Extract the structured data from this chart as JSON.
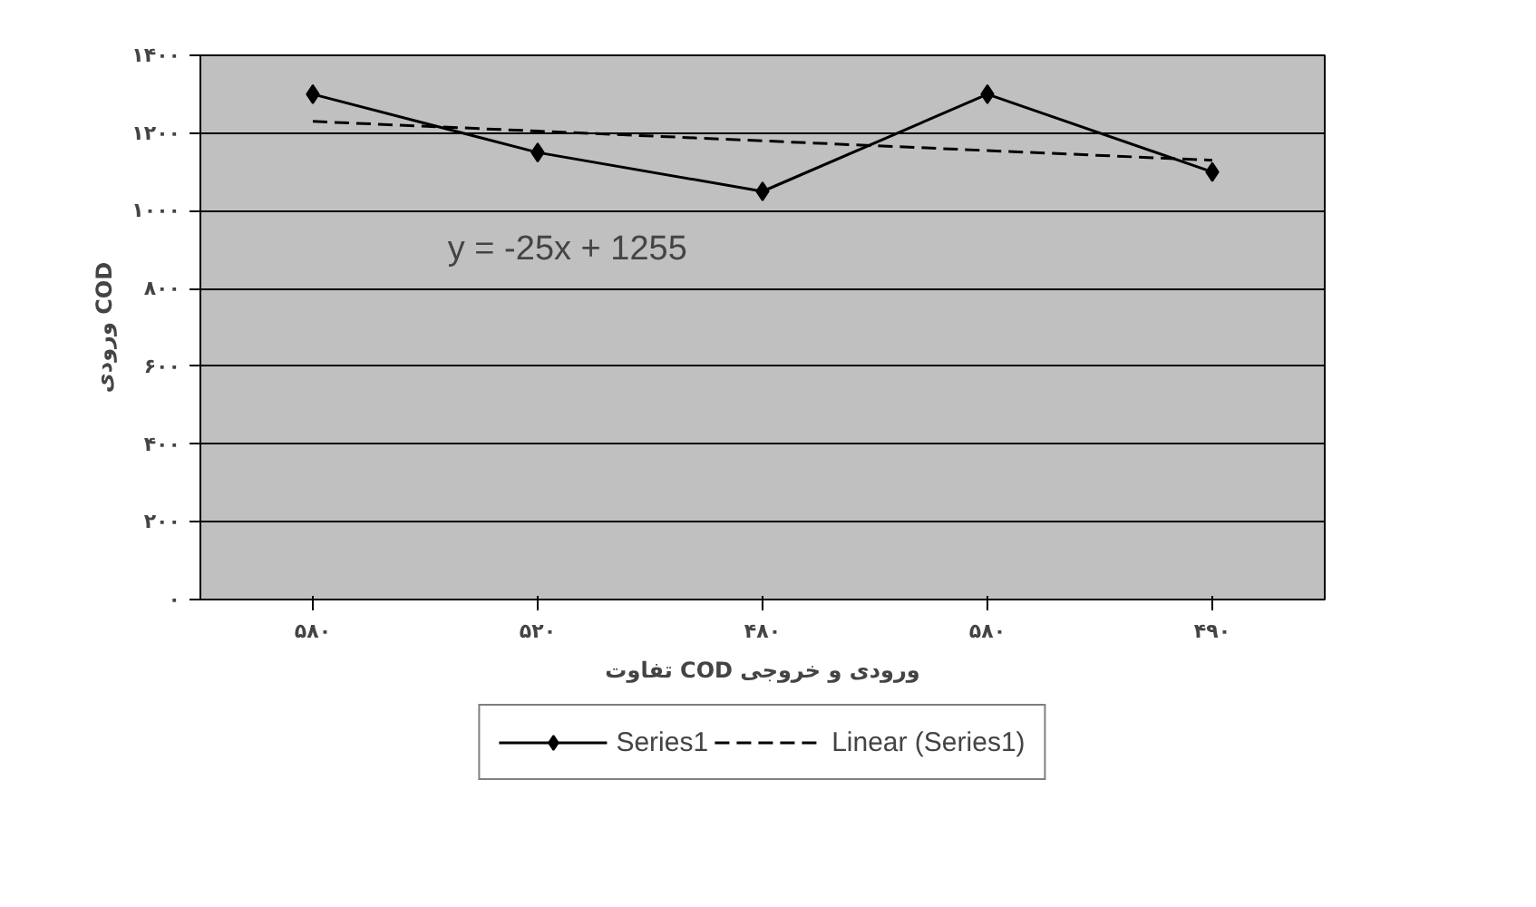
{
  "chart_data": {
    "type": "line",
    "xlabel": "تفاوت COD ورودی و خروجی",
    "ylabel": "ورودی COD",
    "categories": [
      "۵۸۰",
      "۵۲۰",
      "۴۸۰",
      "۵۸۰",
      "۴۹۰"
    ],
    "series": [
      {
        "name": "Series1",
        "color": "#000000",
        "values": [
          1300,
          1150,
          1050,
          1300,
          1100
        ],
        "marker": "diamond",
        "line_style": "solid"
      },
      {
        "name": "Linear (Series1)",
        "color": "#000000",
        "values": [
          1230,
          1205,
          1180,
          1155,
          1130
        ],
        "marker": "none",
        "line_style": "dashed"
      }
    ],
    "ylim": [
      0,
      1400
    ],
    "yticks": [
      {
        "value": 0,
        "label": "۰"
      },
      {
        "value": 200,
        "label": "۲۰۰"
      },
      {
        "value": 400,
        "label": "۴۰۰"
      },
      {
        "value": 600,
        "label": "۶۰۰"
      },
      {
        "value": 800,
        "label": "۸۰۰"
      },
      {
        "value": 1000,
        "label": "۱۰۰۰"
      },
      {
        "value": 1200,
        "label": "۱۲۰۰"
      },
      {
        "value": 1400,
        "label": "۱۴۰۰"
      }
    ],
    "grid": "y",
    "legend": "bottom",
    "annotations": [
      "y = -25x + 1255"
    ]
  }
}
